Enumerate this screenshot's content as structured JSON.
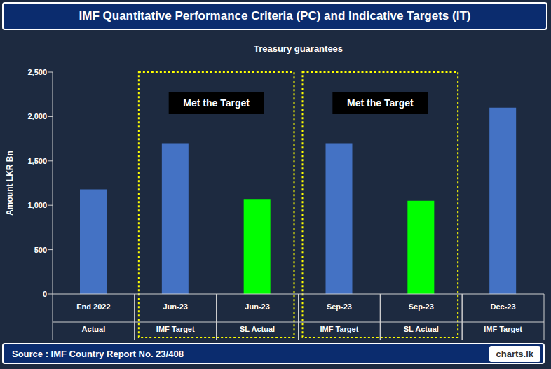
{
  "chart_data": {
    "type": "bar",
    "title": "IMF Quantitative Performance Criteria (PC) and Indicative Targets (IT)",
    "subtitle": "Treasury guarantees",
    "y_label": "Amount LKR Bn",
    "categories": [
      "End 2022\nActual",
      "Jun-23\nIMF Target",
      "Jun-23\nSL Actual",
      "Sep-23\nIMF Target",
      "Sep-23\nSL Actual",
      "Dec-23\nIMF Target"
    ],
    "values": [
      1180,
      1700,
      1070,
      1700,
      1050,
      2100
    ],
    "colors": [
      "#4472c4",
      "#4472c4",
      "#00ff00",
      "#4472c4",
      "#00ff00",
      "#4472c4"
    ],
    "ylim": [
      0,
      2500
    ],
    "yticks": [
      0,
      500,
      {
        "value": 1000,
        "label": "1,000"
      },
      {
        "value": 1500,
        "label": "1,500"
      },
      {
        "value": 2000,
        "label": "2,000"
      },
      {
        "value": 2500,
        "label": "2,500"
      }
    ],
    "grid": false,
    "annotations": [
      {
        "text": "Met the Target",
        "from": "Jun-23\nIMF Target",
        "to": "Jun-23\nSL Actual"
      },
      {
        "text": "Met the Target",
        "from": "Sep-23\nIMF Target",
        "to": "Sep-23\nSL Actual"
      }
    ],
    "source": "Source : IMF Country Report No. 23/408",
    "brand": "charts.lk"
  }
}
